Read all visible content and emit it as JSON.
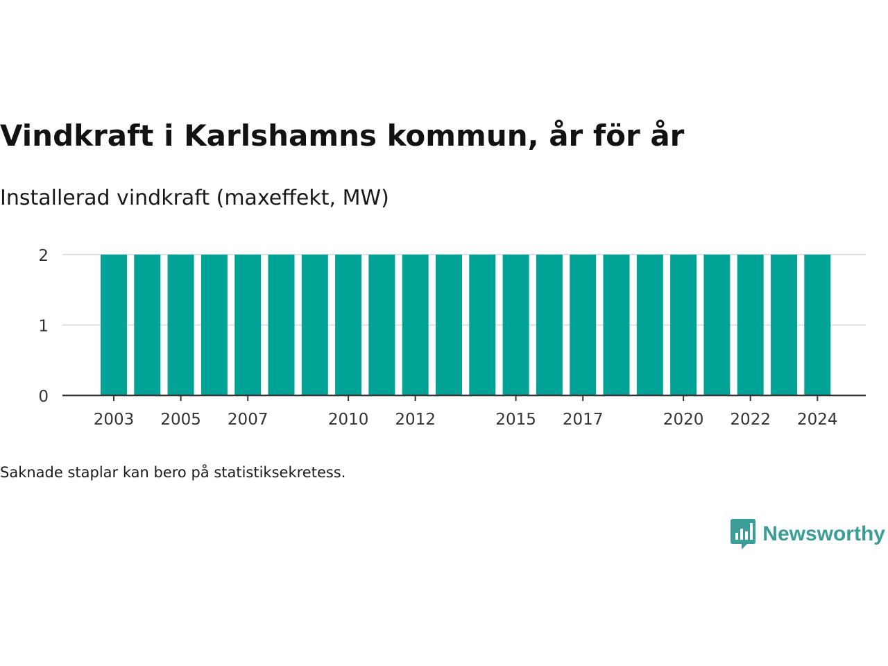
{
  "chart_data": {
    "type": "bar",
    "title": "Vindkraft i Karlshamns kommun, år för år",
    "subtitle": "Installerad vindkraft (maxeffekt, MW)",
    "categories": [
      "2003",
      "2004",
      "2005",
      "2006",
      "2007",
      "2008",
      "2009",
      "2010",
      "2011",
      "2012",
      "2013",
      "2014",
      "2015",
      "2016",
      "2017",
      "2018",
      "2019",
      "2020",
      "2021",
      "2022",
      "2023",
      "2024"
    ],
    "values": [
      2,
      2,
      2,
      2,
      2,
      2,
      2,
      2,
      2,
      2,
      2,
      2,
      2,
      2,
      2,
      2,
      2,
      2,
      2,
      2,
      2,
      2
    ],
    "x_tick_labels": [
      "2003",
      "2005",
      "2007",
      "2010",
      "2012",
      "2015",
      "2017",
      "2020",
      "2022",
      "2024"
    ],
    "y_ticks": [
      0,
      1,
      2
    ],
    "ylim": [
      0,
      2
    ],
    "grid": true,
    "bar_color": "#00a396",
    "xlabel": "",
    "ylabel": ""
  },
  "footnote": "Saknade staplar kan bero på statistiksekretess.",
  "brand": {
    "name": "Newsworthy",
    "icon": "bar-chart-speech-bubble-icon",
    "color": "#3a9e96"
  }
}
